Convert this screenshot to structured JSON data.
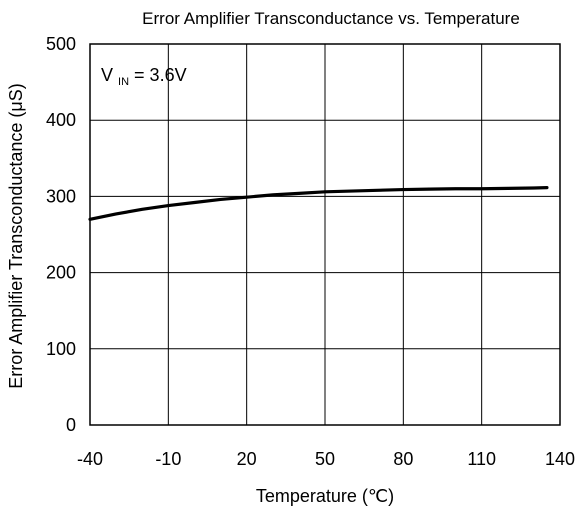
{
  "chart_data": {
    "type": "line",
    "title": "Error Amplifier Transconductance vs. Temperature",
    "xlabel": "Temperature (℃)",
    "ylabel": "Error Amplifier Transconductance (μS)",
    "xlim": [
      -40,
      140
    ],
    "ylim": [
      0,
      500
    ],
    "xticks": [
      -40,
      -10,
      20,
      50,
      80,
      110,
      140
    ],
    "yticks": [
      0,
      100,
      200,
      300,
      400,
      500
    ],
    "xtick_labels": [
      "-40",
      "-10",
      "20",
      "50",
      "80",
      "110",
      "140"
    ],
    "ytick_labels": [
      "0",
      "100",
      "200",
      "300",
      "400",
      "500"
    ],
    "grid": true,
    "annotation": {
      "main": "V",
      "subscript": "IN",
      "suffix": " = 3.6V"
    },
    "series": [
      {
        "color": "#000000",
        "x": [
          -40,
          -30,
          -20,
          -10,
          0,
          10,
          20,
          30,
          40,
          50,
          60,
          70,
          80,
          90,
          100,
          110,
          120,
          130,
          135
        ],
        "y": [
          270,
          277,
          283,
          288,
          292,
          296,
          299,
          302,
          304,
          306,
          307,
          308,
          309,
          309.5,
          310,
          310,
          310.5,
          311,
          311.5
        ]
      }
    ]
  }
}
